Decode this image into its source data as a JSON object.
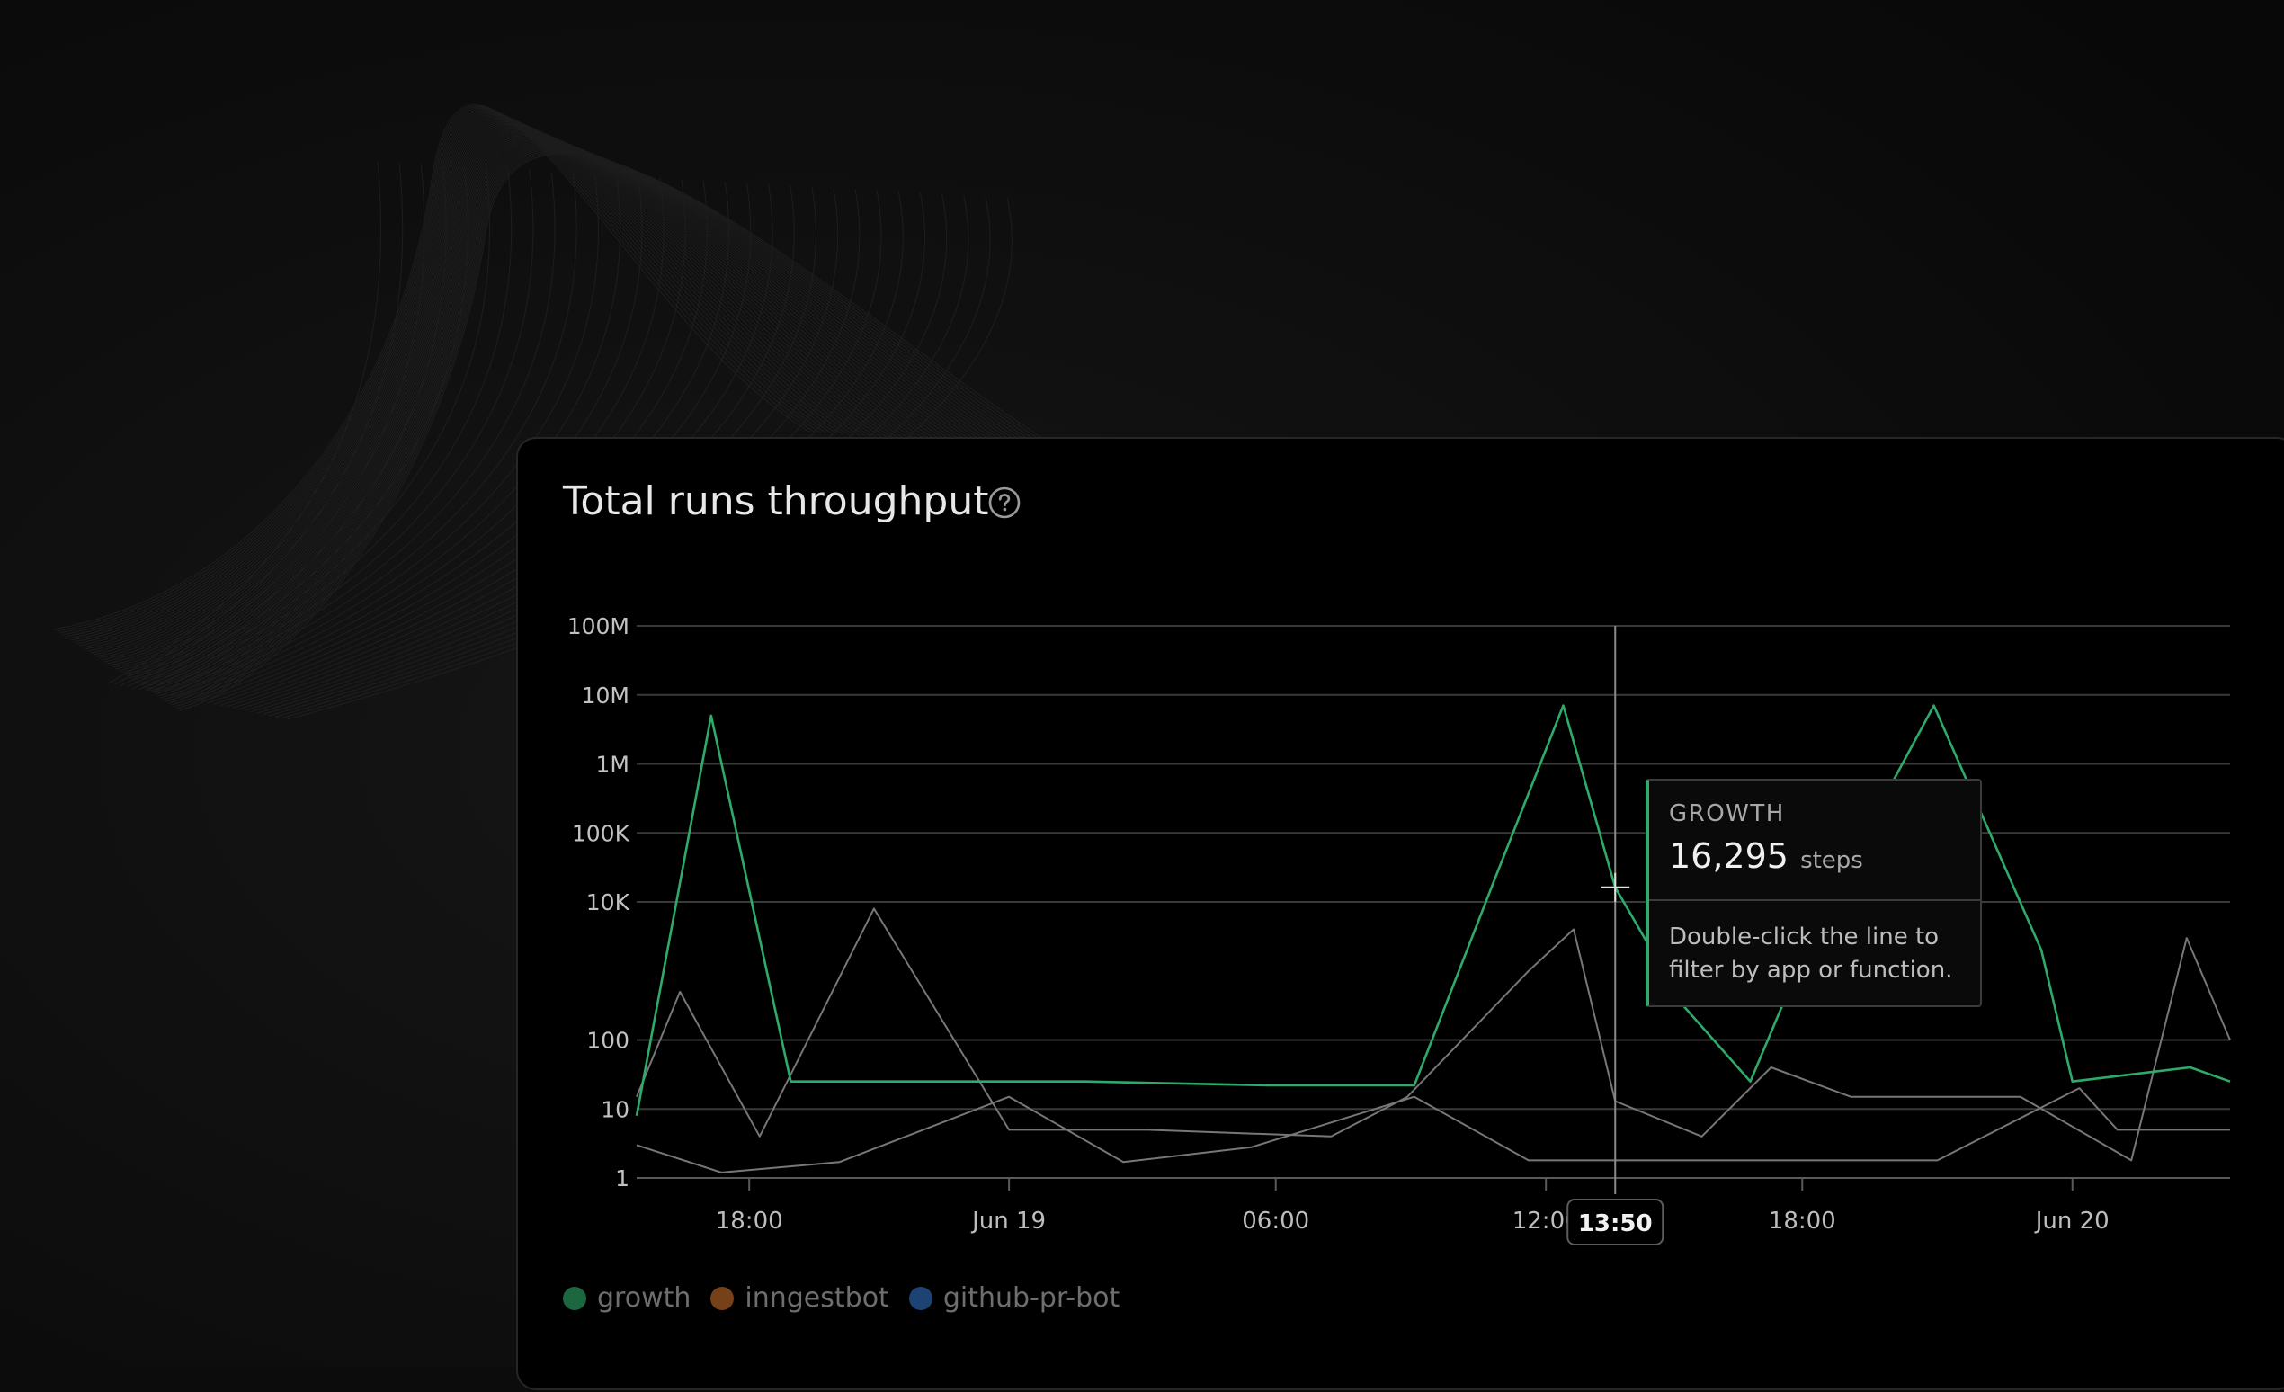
{
  "card": {
    "title": "Total runs throughput",
    "help_icon": "question-circle-icon"
  },
  "tooltip": {
    "series": "GROWTH",
    "value": "16,295",
    "unit": "steps",
    "hint": "Double-click the line to filter by app or function."
  },
  "crosshair_label": "13:50",
  "colors": {
    "growth": "#2eaa6b",
    "inngestbot": "#c56a2a",
    "github_pr_bot": "#2f6fc1",
    "muted_line": "#777777",
    "grid": "#3a3a3a"
  },
  "chart_data": {
    "type": "line",
    "title": "Total runs throughput",
    "y_scale": "log",
    "y_ticks": [
      {
        "value": 1,
        "label": "1"
      },
      {
        "value": 10,
        "label": "10"
      },
      {
        "value": 100,
        "label": "100"
      },
      {
        "value": 10000,
        "label": "10K"
      },
      {
        "value": 100000,
        "label": "100K"
      },
      {
        "value": 1000000,
        "label": "1M"
      },
      {
        "value": 10000000,
        "label": "10M"
      },
      {
        "value": 100000000,
        "label": "100M"
      }
    ],
    "ylim": [
      1,
      100000000
    ],
    "x_unit": "hours since Jun 18 00:00",
    "xlim": [
      13.75,
      59.75
    ],
    "x_ticks": [
      {
        "x": 17,
        "label": "18:00"
      },
      {
        "x": 24.5,
        "label": "Jun 19"
      },
      {
        "x": 32.2,
        "label": "06:00"
      },
      {
        "x": 40,
        "label": "12:00"
      },
      {
        "x": 47.4,
        "label": "18:00"
      },
      {
        "x": 55.2,
        "label": "Jun 20"
      }
    ],
    "crosshair": {
      "x": 42,
      "y": 16295,
      "label": "13:50"
    },
    "grid": true,
    "legend_position": "bottom-left",
    "series": [
      {
        "name": "growth",
        "color": "#2eaa6b",
        "points": [
          [
            13.75,
            8
          ],
          [
            15.9,
            5000000
          ],
          [
            18.2,
            25
          ],
          [
            24,
            25
          ],
          [
            26.7,
            25
          ],
          [
            32,
            22
          ],
          [
            36.2,
            22
          ],
          [
            38.5,
            20000
          ],
          [
            40.5,
            7000000
          ],
          [
            42,
            16295
          ],
          [
            44,
            300
          ],
          [
            45.9,
            25
          ],
          [
            47.9,
            6000
          ],
          [
            51.2,
            7000000
          ],
          [
            54.3,
            2000
          ],
          [
            55.2,
            25
          ],
          [
            58.6,
            40
          ],
          [
            59.75,
            25
          ]
        ]
      },
      {
        "name": "inngestbot",
        "color": "#777777",
        "points": [
          [
            13.75,
            15
          ],
          [
            15.0,
            500
          ],
          [
            17.3,
            4
          ],
          [
            20.6,
            8000
          ],
          [
            24.5,
            5
          ],
          [
            26,
            5
          ],
          [
            28.5,
            5
          ],
          [
            33.8,
            4
          ],
          [
            36,
            15
          ],
          [
            39.5,
            1000
          ],
          [
            40.8,
            4000
          ],
          [
            42,
            13
          ],
          [
            44.5,
            4
          ],
          [
            46.5,
            40
          ],
          [
            48.8,
            15
          ],
          [
            51.2,
            15
          ],
          [
            53.7,
            15
          ],
          [
            56.9,
            1.8
          ],
          [
            58.5,
            3000
          ],
          [
            59.75,
            100
          ]
        ]
      },
      {
        "name": "github-pr-bot",
        "color": "#777777",
        "points": [
          [
            13.75,
            3
          ],
          [
            16.2,
            1.2
          ],
          [
            19.6,
            1.7
          ],
          [
            24.5,
            15
          ],
          [
            27.8,
            1.7
          ],
          [
            31.5,
            2.8
          ],
          [
            36.2,
            15
          ],
          [
            39.5,
            1.8
          ],
          [
            43.8,
            1.8
          ],
          [
            46,
            1.8
          ],
          [
            51.3,
            1.8
          ],
          [
            55.4,
            20
          ],
          [
            56.5,
            5
          ],
          [
            58.9,
            5
          ],
          [
            59.75,
            5
          ]
        ]
      }
    ],
    "legend": [
      {
        "name": "growth",
        "color": "#2eaa6b"
      },
      {
        "name": "inngestbot",
        "color": "#c56a2a"
      },
      {
        "name": "github-pr-bot",
        "color": "#2f6fc1"
      }
    ]
  }
}
